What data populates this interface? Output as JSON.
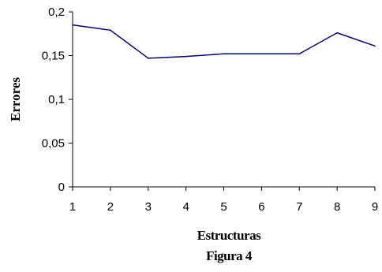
{
  "chart_data": {
    "type": "line",
    "title": "",
    "xlabel": "Estructuras",
    "ylabel": "Errores",
    "caption": "Figura 4",
    "categories": [
      "1",
      "2",
      "3",
      "4",
      "5",
      "6",
      "7",
      "8",
      "9"
    ],
    "values": [
      0.185,
      0.179,
      0.147,
      0.149,
      0.152,
      0.152,
      0.152,
      0.176,
      0.161
    ],
    "ylim": [
      0,
      0.2
    ],
    "yticks": [
      0,
      0.05,
      0.1,
      0.15,
      0.2
    ],
    "ytick_labels": [
      "0",
      "0,05",
      "0,1",
      "0,15",
      "0,2"
    ],
    "grid": false,
    "legend": "none",
    "line_color": "#000080"
  }
}
